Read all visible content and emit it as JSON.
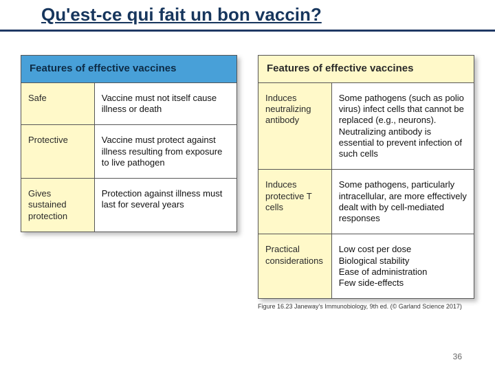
{
  "title": "Qu'est-ce qui fait un bon vaccin?",
  "colors": {
    "title_color": "#17365d",
    "rule_color": "#1f3864",
    "header_blue": "#48a0d8",
    "header_yellow": "#fff9c9",
    "border": "#555555",
    "text": "#111111",
    "background": "#ffffff"
  },
  "left_table": {
    "header": "Features of effective vaccines",
    "header_bg": "blue",
    "rows": [
      {
        "label": "Safe",
        "desc": "Vaccine must not itself cause illness or death"
      },
      {
        "label": "Protective",
        "desc": "Vaccine must protect against illness resulting from exposure to live pathogen"
      },
      {
        "label": "Gives sustained protection",
        "desc": "Protection against illness must last for several years"
      }
    ]
  },
  "right_table": {
    "header": "Features of effective vaccines",
    "header_bg": "yellow",
    "rows": [
      {
        "label": "Induces neutralizing antibody",
        "desc": "Some pathogens (such as polio virus) infect cells that cannot be replaced (e.g., neurons). Neutralizing antibody is essential to prevent infection of such cells"
      },
      {
        "label": "Induces protective T cells",
        "desc": "Some pathogens, particularly intracellular, are more effectively dealt with by cell-mediated responses"
      },
      {
        "label": "Practical considerations",
        "desc": "Low cost per dose\nBiological stability\nEase of administration\nFew side-effects"
      }
    ]
  },
  "caption": "Figure 16.23 Janeway's Immunobiology, 9th ed. (© Garland Science 2017)",
  "page_number": "36",
  "fonts": {
    "title_pt": 26,
    "header_pt": 15,
    "cell_pt": 13,
    "caption_pt": 9,
    "pagenum_pt": 12
  }
}
